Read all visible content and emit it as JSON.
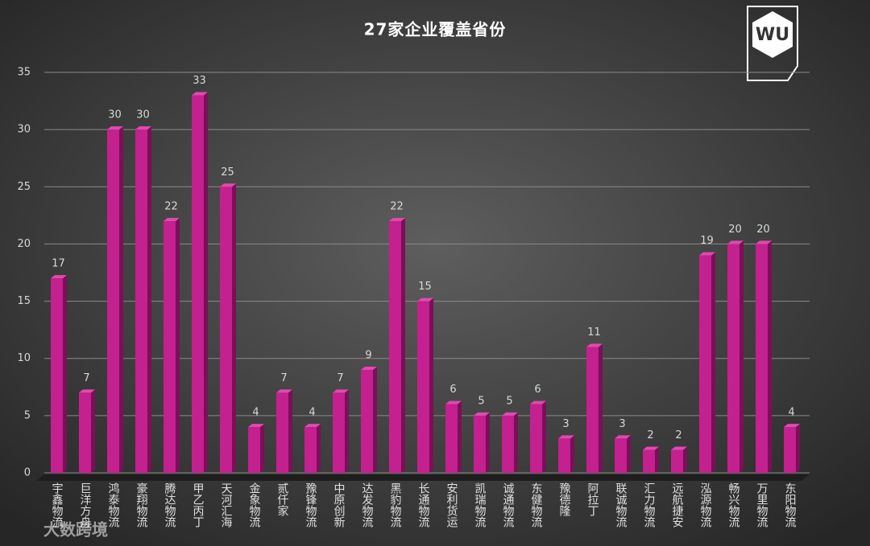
{
  "chart_data": {
    "type": "bar",
    "title": "27家企业覆盖省份",
    "categories": [
      "宇鑫物流",
      "巨洋方舟",
      "鸿泰物流",
      "豪翔物流",
      "腾达物流",
      "甲乙丙丁",
      "天河汇海",
      "金象物流",
      "贰仟家",
      "豫锋物流",
      "中原创新",
      "达发物流",
      "黑豹物流",
      "长通物流",
      "安利货运",
      "凯瑞物流",
      "诚通物流",
      "东健物流",
      "豫德隆",
      "阿拉丁",
      "联诚物流",
      "汇力物流",
      "远航捷安",
      "泓源物流",
      "畅兴物流",
      "万里物流",
      "东阳物流"
    ],
    "values": [
      17,
      7,
      30,
      30,
      22,
      33,
      25,
      4,
      7,
      4,
      7,
      9,
      22,
      15,
      6,
      5,
      5,
      6,
      3,
      11,
      3,
      2,
      2,
      19,
      20,
      20,
      4
    ],
    "color": "#c4208f",
    "ylim": [
      0,
      35
    ],
    "yticks": [
      0,
      5,
      10,
      15,
      20,
      25,
      30,
      35
    ],
    "grid": true
  },
  "watermark": "大数跨境"
}
